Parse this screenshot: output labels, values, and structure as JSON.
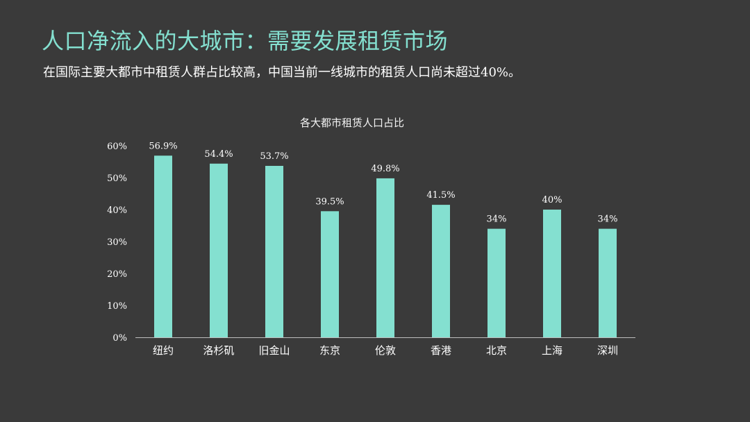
{
  "slide": {
    "title": "人口净流入的大城市：需要发展租赁市场",
    "subtitle": "在国际主要大都市中租赁人群占比较高，中国当前一线城市的租赁人口尚未超过40%。"
  },
  "colors": {
    "background": "#3a3a3a",
    "accent": "#84e0d0",
    "text": "#ffffff"
  },
  "chart_data": {
    "type": "bar",
    "title": "各大都市租赁人口占比",
    "xlabel": "",
    "ylabel": "",
    "categories": [
      "纽约",
      "洛杉矶",
      "旧金山",
      "东京",
      "伦敦",
      "香港",
      "北京",
      "上海",
      "深圳"
    ],
    "values": [
      56.9,
      54.4,
      53.7,
      39.5,
      49.8,
      41.5,
      34,
      40,
      34
    ],
    "data_labels": [
      "56.9%",
      "54.4%",
      "53.7%",
      "39.5%",
      "49.8%",
      "41.5%",
      "34%",
      "40%",
      "34%"
    ],
    "ylim": [
      0,
      60
    ],
    "yticks": [
      0,
      10,
      20,
      30,
      40,
      50,
      60
    ],
    "ytick_labels": [
      "0%",
      "10%",
      "20%",
      "30%",
      "40%",
      "50%",
      "60%"
    ],
    "bar_color": "#84e0d0",
    "grid": false,
    "legend": "none"
  }
}
